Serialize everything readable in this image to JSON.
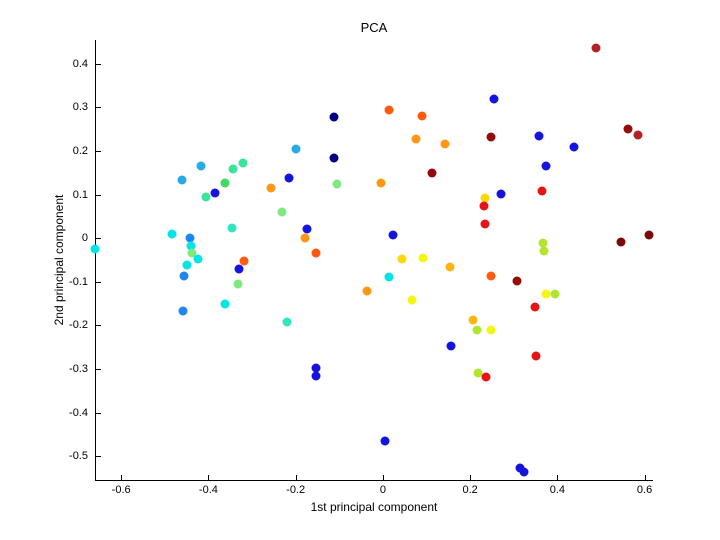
{
  "title": "PCA",
  "chart_data": {
    "type": "scatter",
    "title": "PCA",
    "xlabel": "1st principal component",
    "ylabel": "2nd principal component",
    "xlim": [
      -0.66,
      0.617
    ],
    "ylim": [
      -0.554,
      0.454
    ],
    "xticks": [
      -0.6,
      -0.4,
      -0.2,
      0,
      0.2,
      0.4,
      0.6
    ],
    "yticks": [
      0.4,
      0.3,
      0.2,
      0.1,
      0,
      -0.1,
      -0.2,
      -0.3,
      -0.4,
      -0.5
    ],
    "grid": false,
    "legend": null,
    "marker": "filled-circle",
    "palette": [
      "#000082",
      "#1414DE",
      "#1E86F0",
      "#28AAE6",
      "#00E6E6",
      "#2EE6C0",
      "#38E39B",
      "#42D862",
      "#7FE87F",
      "#B2E62E",
      "#F5F514",
      "#FFD60A",
      "#FFB414",
      "#FF9614",
      "#FF5A0F",
      "#E61414",
      "#B22222",
      "#960A0A",
      "#7A0A0A"
    ],
    "palette_names": [
      "navy",
      "blue",
      "dodger-blue",
      "sky-blue",
      "cyan",
      "turquoise",
      "spring-green",
      "green",
      "light-green",
      "yellow-green",
      "yellow",
      "golden-yellow",
      "gold-orange",
      "orange",
      "orange-red",
      "red",
      "firebrick",
      "dark-red",
      "maroon"
    ],
    "points_format": [
      "x",
      "y",
      "palette_index"
    ],
    "points": [
      [
        -0.661,
        -0.024,
        4
      ],
      [
        -0.484,
        0.01,
        4
      ],
      [
        -0.443,
        0.001,
        2
      ],
      [
        -0.441,
        -0.018,
        4
      ],
      [
        -0.438,
        -0.035,
        8
      ],
      [
        -0.424,
        -0.047,
        4
      ],
      [
        -0.448,
        -0.062,
        4
      ],
      [
        -0.456,
        -0.087,
        2
      ],
      [
        -0.459,
        -0.167,
        2
      ],
      [
        -0.461,
        0.134,
        3
      ],
      [
        -0.418,
        0.166,
        3
      ],
      [
        -0.344,
        0.159,
        6
      ],
      [
        -0.321,
        0.173,
        6
      ],
      [
        -0.363,
        0.126,
        7
      ],
      [
        -0.405,
        0.095,
        6
      ],
      [
        -0.384,
        0.104,
        1
      ],
      [
        -0.346,
        0.024,
        5
      ],
      [
        -0.361,
        -0.15,
        4
      ],
      [
        -0.332,
        -0.105,
        8
      ],
      [
        -0.331,
        -0.07,
        1
      ],
      [
        -0.318,
        -0.052,
        14
      ],
      [
        -0.219,
        -0.193,
        5
      ],
      [
        -0.256,
        0.115,
        13
      ],
      [
        -0.232,
        0.061,
        8
      ],
      [
        -0.2,
        0.204,
        3
      ],
      [
        -0.215,
        0.138,
        1
      ],
      [
        -0.173,
        0.022,
        1
      ],
      [
        -0.179,
        0.001,
        13
      ],
      [
        -0.154,
        -0.035,
        14
      ],
      [
        -0.154,
        -0.298,
        1
      ],
      [
        -0.154,
        -0.315,
        1
      ],
      [
        -0.111,
        0.277,
        0
      ],
      [
        -0.112,
        0.184,
        0
      ],
      [
        -0.106,
        0.123,
        8
      ],
      [
        0.015,
        0.294,
        14
      ],
      [
        0.09,
        0.279,
        14
      ],
      [
        0.075,
        0.227,
        13
      ],
      [
        0.143,
        0.216,
        13
      ],
      [
        0.113,
        0.15,
        17
      ],
      [
        -0.004,
        0.127,
        13
      ],
      [
        0.023,
        0.008,
        1
      ],
      [
        0.015,
        -0.089,
        4
      ],
      [
        0.044,
        -0.047,
        11
      ],
      [
        0.093,
        -0.045,
        10
      ],
      [
        0.153,
        -0.065,
        12
      ],
      [
        -0.037,
        -0.12,
        13
      ],
      [
        0.066,
        -0.142,
        10
      ],
      [
        0.157,
        -0.246,
        1
      ],
      [
        0.006,
        -0.464,
        1
      ],
      [
        0.254,
        0.318,
        1
      ],
      [
        0.248,
        0.231,
        17
      ],
      [
        0.357,
        0.233,
        1
      ],
      [
        0.438,
        0.21,
        1
      ],
      [
        0.489,
        0.435,
        16
      ],
      [
        0.561,
        0.25,
        17
      ],
      [
        0.584,
        0.237,
        16
      ],
      [
        0.373,
        0.166,
        1
      ],
      [
        0.365,
        0.108,
        15
      ],
      [
        0.27,
        0.102,
        1
      ],
      [
        0.233,
        0.091,
        11
      ],
      [
        0.231,
        0.073,
        15
      ],
      [
        0.233,
        0.033,
        15
      ],
      [
        0.367,
        -0.01,
        9
      ],
      [
        0.369,
        -0.03,
        9
      ],
      [
        0.546,
        -0.008,
        18
      ],
      [
        0.61,
        0.008,
        18
      ],
      [
        0.248,
        -0.087,
        14
      ],
      [
        0.307,
        -0.099,
        17
      ],
      [
        0.374,
        -0.129,
        10
      ],
      [
        0.395,
        -0.127,
        9
      ],
      [
        0.349,
        -0.157,
        15
      ],
      [
        0.206,
        -0.188,
        12
      ],
      [
        0.216,
        -0.211,
        9
      ],
      [
        0.247,
        -0.21,
        10
      ],
      [
        0.35,
        -0.269,
        15
      ],
      [
        0.219,
        -0.309,
        9
      ],
      [
        0.237,
        -0.318,
        15
      ],
      [
        0.314,
        -0.526,
        1
      ],
      [
        0.324,
        -0.536,
        1
      ]
    ]
  }
}
